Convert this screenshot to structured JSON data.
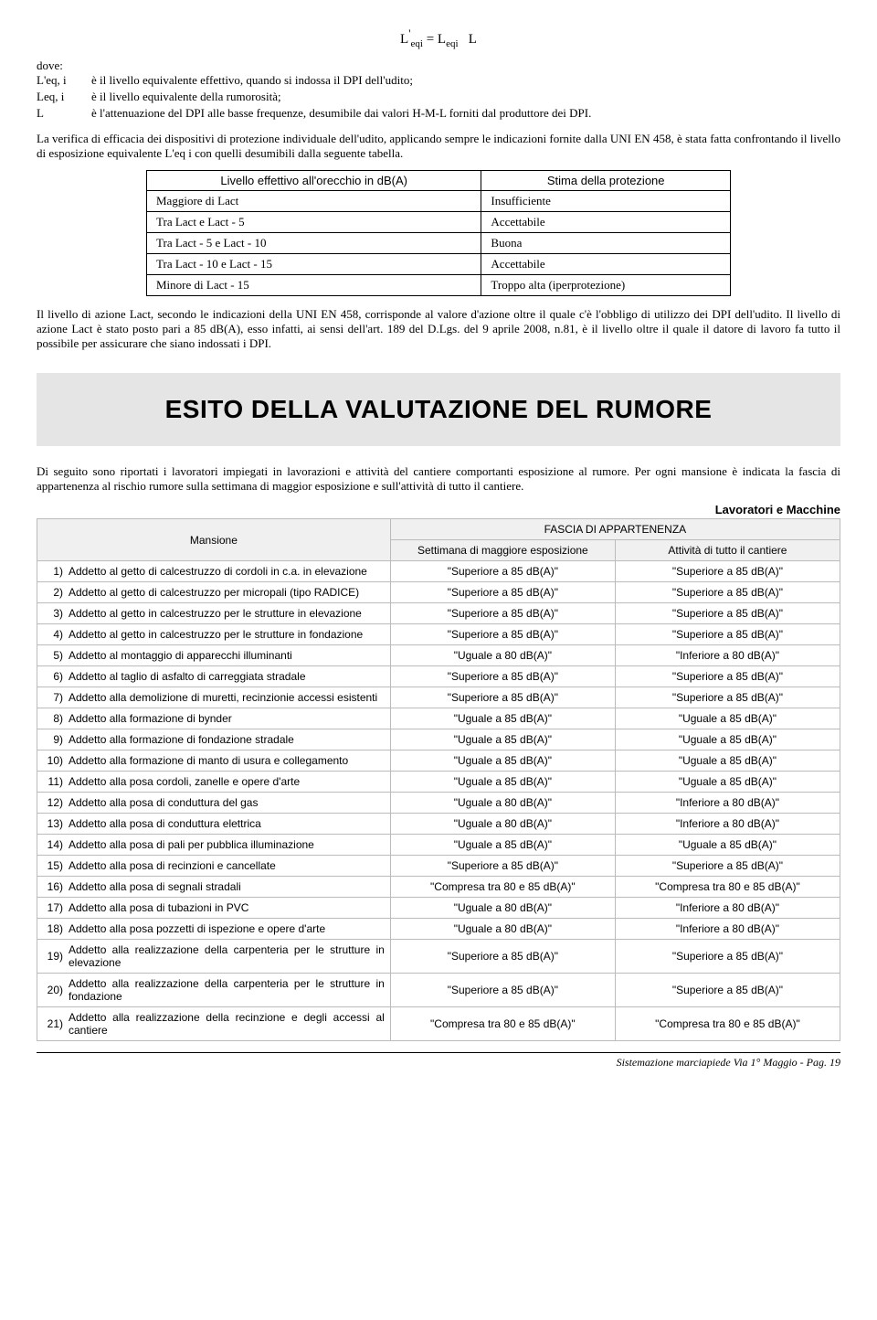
{
  "formula": "L'eqi = Leqi − L",
  "dove_label": "dove:",
  "defs": [
    {
      "term": "L'eq, i",
      "desc": "è il livello equivalente effettivo, quando si indossa il DPI dell'udito;"
    },
    {
      "term": "Leq, i",
      "desc": "è il livello equivalente della rumorosità;"
    },
    {
      "term": "L",
      "desc": "è l'attenuazione del DPI alle basse frequenze, desumibile dai valori H-M-L forniti dal produttore dei DPI."
    }
  ],
  "para1": "La verifica di efficacia dei dispositivi di protezione individuale dell'udito, applicando sempre le indicazioni fornite dalla UNI EN 458, è stata fatta confrontando il livello di esposizione equivalente L'eq i con quelli desumibili dalla seguente tabella.",
  "prot_table": {
    "head": [
      "Livello effettivo all'orecchio in dB(A)",
      "Stima della protezione"
    ],
    "rows": [
      [
        "Maggiore di Lact",
        "Insufficiente"
      ],
      [
        "Tra Lact e Lact - 5",
        "Accettabile"
      ],
      [
        "Tra Lact - 5 e Lact - 10",
        "Buona"
      ],
      [
        "Tra Lact - 10 e Lact - 15",
        "Accettabile"
      ],
      [
        "Minore di Lact - 15",
        "Troppo alta (iperprotezione)"
      ]
    ]
  },
  "para2": "Il livello di azione Lact, secondo le indicazioni della UNI EN 458, corrisponde al valore d'azione oltre il quale c'è l'obbligo di utilizzo dei DPI dell'udito. Il livello di azione Lact è stato posto pari a 85 dB(A), esso infatti, ai sensi dell'art. 189 del D.Lgs. del 9 aprile 2008, n.81, è il livello oltre il quale il datore di lavoro fa tutto il possibile per assicurare che siano indossati i DPI.",
  "banner": "ESITO DELLA VALUTAZIONE DEL RUMORE",
  "para3": "Di seguito sono riportati i lavoratori impiegati in lavorazioni e attività del cantiere comportanti esposizione al rumore. Per ogni mansione è indicata la fascia di appartenenza al rischio rumore sulla settimana di maggior esposizione e sull'attività di tutto il cantiere.",
  "subright": "Lavoratori e Macchine",
  "main_table": {
    "head": {
      "mansione": "Mansione",
      "fascia": "FASCIA DI APPARTENENZA",
      "settimana": "Settimana di maggiore esposizione",
      "attivita": "Attività di tutto il cantiere"
    },
    "rows": [
      {
        "n": "1)",
        "m": "Addetto al getto di calcestruzzo di cordoli in c.a. in elevazione",
        "s": "\"Superiore a 85 dB(A)\"",
        "a": "\"Superiore a 85 dB(A)\""
      },
      {
        "n": "2)",
        "m": "Addetto al getto di calcestruzzo per micropali (tipo RADICE)",
        "s": "\"Superiore a 85 dB(A)\"",
        "a": "\"Superiore a 85 dB(A)\""
      },
      {
        "n": "3)",
        "m": "Addetto al getto in calcestruzzo per le strutture in elevazione",
        "s": "\"Superiore a 85 dB(A)\"",
        "a": "\"Superiore a 85 dB(A)\""
      },
      {
        "n": "4)",
        "m": "Addetto al getto in calcestruzzo per le strutture in fondazione",
        "s": "\"Superiore a 85 dB(A)\"",
        "a": "\"Superiore a 85 dB(A)\""
      },
      {
        "n": "5)",
        "m": "Addetto al montaggio di apparecchi illuminanti",
        "s": "\"Uguale a 80 dB(A)\"",
        "a": "\"Inferiore a 80 dB(A)\""
      },
      {
        "n": "6)",
        "m": "Addetto al taglio di asfalto di carreggiata stradale",
        "s": "\"Superiore a 85 dB(A)\"",
        "a": "\"Superiore a 85 dB(A)\""
      },
      {
        "n": "7)",
        "m": "Addetto alla demolizione di muretti, recinzionie accessi esistenti",
        "s": "\"Superiore a 85 dB(A)\"",
        "a": "\"Superiore a 85 dB(A)\""
      },
      {
        "n": "8)",
        "m": "Addetto alla formazione di bynder",
        "s": "\"Uguale a 85 dB(A)\"",
        "a": "\"Uguale a 85 dB(A)\""
      },
      {
        "n": "9)",
        "m": "Addetto alla formazione di fondazione stradale",
        "s": "\"Uguale a 85 dB(A)\"",
        "a": "\"Uguale a 85 dB(A)\""
      },
      {
        "n": "10)",
        "m": "Addetto alla formazione di manto di usura e collegamento",
        "s": "\"Uguale a 85 dB(A)\"",
        "a": "\"Uguale a 85 dB(A)\""
      },
      {
        "n": "11)",
        "m": "Addetto alla posa cordoli, zanelle e opere d'arte",
        "s": "\"Uguale a 85 dB(A)\"",
        "a": "\"Uguale a 85 dB(A)\""
      },
      {
        "n": "12)",
        "m": "Addetto alla posa di conduttura del gas",
        "s": "\"Uguale a 80 dB(A)\"",
        "a": "\"Inferiore a 80 dB(A)\""
      },
      {
        "n": "13)",
        "m": "Addetto alla posa di conduttura elettrica",
        "s": "\"Uguale a 80 dB(A)\"",
        "a": "\"Inferiore a 80 dB(A)\""
      },
      {
        "n": "14)",
        "m": "Addetto alla posa di pali per pubblica illuminazione",
        "s": "\"Uguale a 85 dB(A)\"",
        "a": "\"Uguale a 85 dB(A)\""
      },
      {
        "n": "15)",
        "m": "Addetto alla posa di recinzioni e cancellate",
        "s": "\"Superiore a 85 dB(A)\"",
        "a": "\"Superiore a 85 dB(A)\""
      },
      {
        "n": "16)",
        "m": "Addetto alla posa di segnali stradali",
        "s": "\"Compresa tra  80 e 85 dB(A)\"",
        "a": "\"Compresa tra  80 e 85 dB(A)\""
      },
      {
        "n": "17)",
        "m": "Addetto alla posa di tubazioni in PVC",
        "s": "\"Uguale a 80 dB(A)\"",
        "a": "\"Inferiore a 80 dB(A)\""
      },
      {
        "n": "18)",
        "m": "Addetto alla posa pozzetti di ispezione e opere d'arte",
        "s": "\"Uguale a 80 dB(A)\"",
        "a": "\"Inferiore a 80 dB(A)\""
      },
      {
        "n": "19)",
        "m": "Addetto alla realizzazione della carpenteria per le strutture in elevazione",
        "s": "\"Superiore a 85 dB(A)\"",
        "a": "\"Superiore a 85 dB(A)\""
      },
      {
        "n": "20)",
        "m": "Addetto alla realizzazione della carpenteria per le strutture in fondazione",
        "s": "\"Superiore a 85 dB(A)\"",
        "a": "\"Superiore a 85 dB(A)\""
      },
      {
        "n": "21)",
        "m": "Addetto alla realizzazione della recinzione e degli accessi al cantiere",
        "s": "\"Compresa tra  80 e 85 dB(A)\"",
        "a": "\"Compresa tra  80 e 85 dB(A)\""
      }
    ]
  },
  "footer": "Sistemazione marciapiede Via 1° Maggio - Pag. 19"
}
